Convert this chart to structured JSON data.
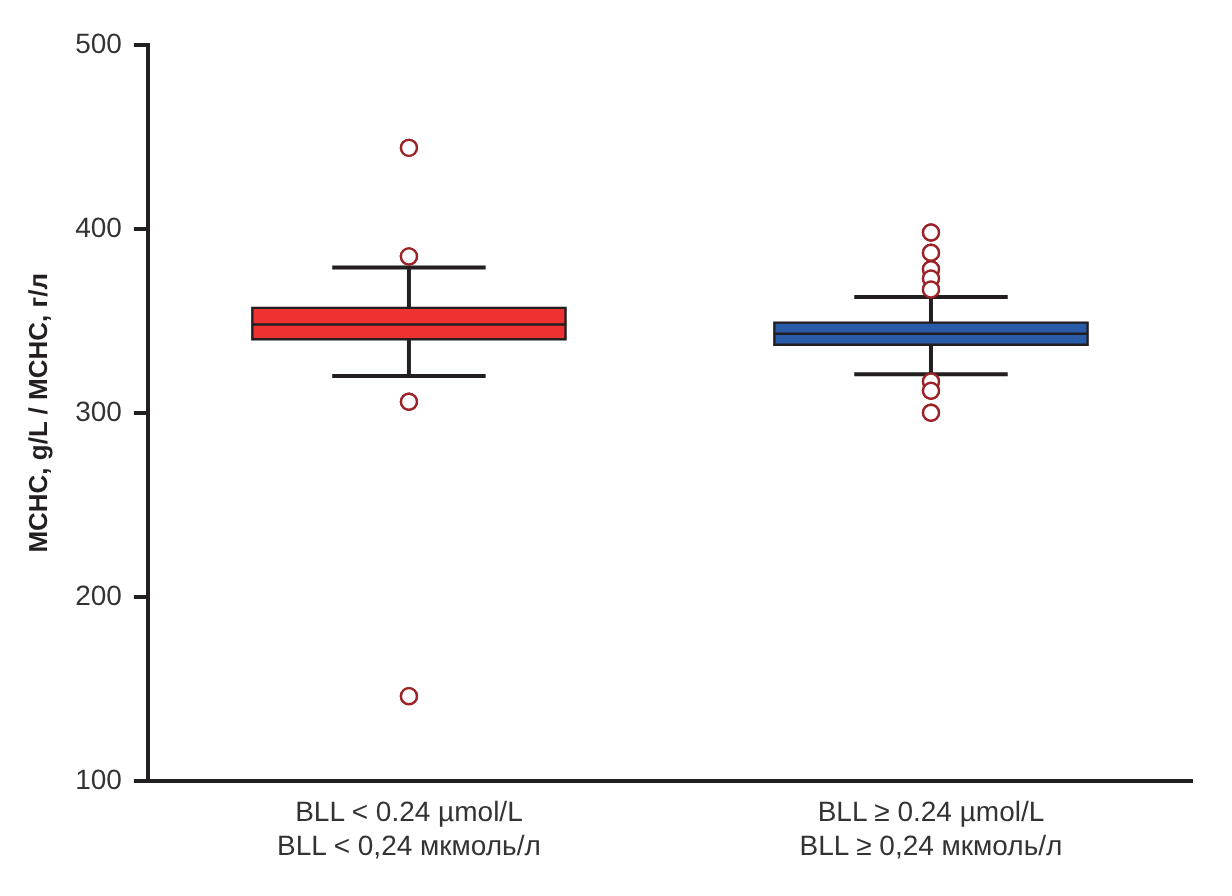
{
  "chart_data": {
    "type": "box",
    "ylabel": "MCHC, g/L / MCHC, г/л",
    "categories": [
      "BLL < 0.24 µmol/L\nBLL < 0,24 мкмоль/л",
      "BLL ≥ 0.24 µmol/L\nBLL ≥ 0,24 мкмоль/л"
    ],
    "colors": [
      "#ee3231",
      "#2a5ba8"
    ],
    "boxes": [
      {
        "low": 320,
        "q1": 340,
        "median": 348,
        "q3": 357,
        "high": 379,
        "outliers": [
          444,
          385,
          306,
          146
        ]
      },
      {
        "low": 321,
        "q1": 337,
        "median": 343,
        "q3": 349,
        "high": 363,
        "outliers": [
          398,
          387,
          378,
          373,
          367,
          317,
          312,
          300
        ]
      }
    ],
    "ylim": [
      100,
      500
    ],
    "yticks": [
      100,
      200,
      300,
      400,
      500
    ],
    "grid": false,
    "legend": false
  }
}
